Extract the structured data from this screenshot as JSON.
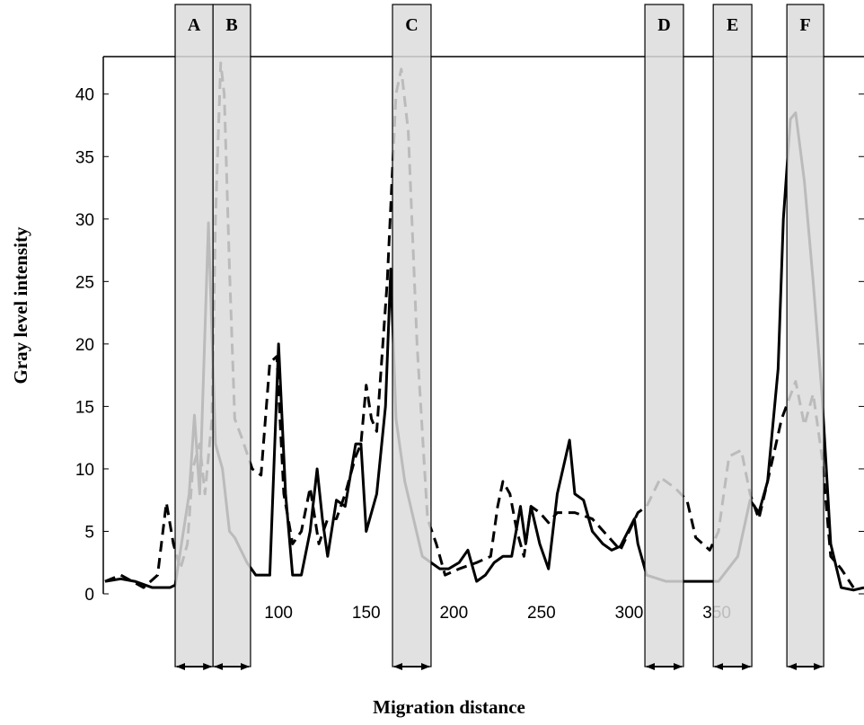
{
  "chart_data": {
    "type": "line",
    "xlabel": "Migration distance",
    "ylabel": "Gray level intensity",
    "xlim": [
      0,
      434
    ],
    "ylim": [
      0,
      43
    ],
    "xticks": [
      100,
      150,
      200,
      250,
      300,
      350
    ],
    "yticks": [
      0,
      5,
      10,
      15,
      20,
      25,
      30,
      35,
      40
    ],
    "series": [
      {
        "color": "#000000",
        "style": "solid",
        "x": [
          1,
          10,
          18,
          28,
          38,
          41,
          49,
          52,
          55,
          60,
          64,
          68,
          72,
          75,
          82,
          87,
          95,
          100,
          104,
          108,
          113,
          118,
          122,
          125,
          128,
          133,
          138,
          144,
          147,
          150,
          156,
          161,
          164,
          167,
          172,
          177,
          182,
          187,
          192,
          197,
          203,
          208,
          213,
          218,
          223,
          228,
          233,
          238,
          241,
          244,
          249,
          254,
          259,
          266,
          269,
          274,
          279,
          285,
          290,
          295,
          303,
          305,
          310,
          321,
          331,
          341,
          351,
          362,
          369,
          374,
          379,
          385,
          388,
          392,
          395,
          400,
          405,
          410,
          415,
          421,
          428,
          434
        ],
        "values": [
          1,
          1.2,
          1,
          0.5,
          0.5,
          0.7,
          8,
          14.3,
          8,
          29.7,
          12,
          10,
          5,
          4.5,
          2.5,
          1.5,
          1.5,
          20,
          8,
          1.5,
          1.5,
          5,
          10,
          6,
          3,
          7.5,
          7,
          12,
          12,
          5,
          8,
          15,
          26,
          14,
          9,
          6,
          3,
          2.5,
          2,
          2,
          2.5,
          3.5,
          1,
          1.5,
          2.5,
          3,
          3,
          7,
          4,
          7,
          4,
          2,
          8,
          12.3,
          8,
          7.5,
          5,
          4,
          3.5,
          3.8,
          6,
          4,
          1.5,
          1,
          1,
          1,
          1,
          3,
          7.5,
          6.5,
          9,
          18,
          30,
          38,
          38.5,
          33,
          25,
          16,
          4,
          0.5,
          0.3,
          0.5
        ]
      },
      {
        "color": "#000000",
        "style": "dashed",
        "x": [
          1,
          10,
          23,
          31,
          36,
          40,
          44,
          48,
          51,
          55,
          58,
          62,
          64,
          67,
          69,
          72,
          75,
          79,
          85,
          90,
          95,
          99,
          103,
          108,
          113,
          118,
          123,
          128,
          133,
          138,
          144,
          147,
          150,
          153,
          156,
          162,
          167,
          170,
          174,
          179,
          185,
          190,
          195,
          203,
          213,
          221,
          225,
          228,
          232,
          236,
          240,
          244,
          249,
          254,
          259,
          269,
          279,
          295,
          300,
          305,
          310,
          318,
          326,
          333,
          338,
          346,
          351,
          357,
          364,
          369,
          374,
          379,
          387,
          395,
          400,
          405,
          410,
          415,
          421,
          428
        ],
        "values": [
          1,
          1.5,
          0.5,
          1.5,
          7.3,
          4,
          2,
          4,
          10,
          12,
          8,
          14,
          30,
          42.5,
          40,
          26,
          14,
          12.5,
          10,
          9.5,
          18.5,
          19,
          8,
          4,
          5,
          8.5,
          4,
          6,
          6,
          8,
          11,
          12,
          16.7,
          14,
          13,
          25,
          40,
          42,
          37,
          20,
          6,
          4,
          1.5,
          2,
          2.5,
          3,
          7,
          9,
          8,
          5,
          3,
          7,
          6.5,
          5.7,
          6.5,
          6.5,
          6,
          3.5,
          5,
          6.5,
          7,
          9.3,
          8.5,
          7.5,
          4.5,
          3.5,
          5,
          11,
          11.5,
          8,
          6,
          9,
          14,
          17,
          13.5,
          16,
          11,
          3,
          2,
          0.5
        ]
      }
    ],
    "bands": [
      {
        "label": "A",
        "x": [
          41,
          62.6
        ]
      },
      {
        "label": "B",
        "x": [
          62.6,
          84
        ]
      },
      {
        "label": "C",
        "x": [
          165,
          187
        ]
      },
      {
        "label": "D",
        "x": [
          309,
          331
        ]
      },
      {
        "label": "E",
        "x": [
          348,
          370
        ]
      },
      {
        "label": "F",
        "x": [
          390,
          411
        ]
      }
    ]
  }
}
